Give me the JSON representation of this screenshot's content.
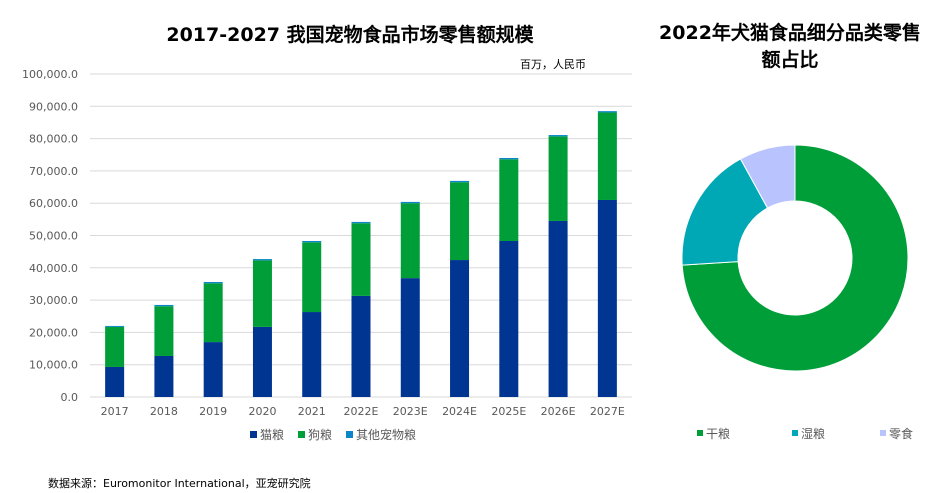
{
  "source": "数据来源：Euromonitor International，亚宠研究院",
  "chart_data": [
    {
      "type": "bar",
      "stacked": true,
      "title": "2017-2027  我国宠物食品市场零售额规模",
      "unit_label": "百万，人民币",
      "categories": [
        "2017",
        "2018",
        "2019",
        "2020",
        "2021",
        "2022E",
        "2023E",
        "2024E",
        "2025E",
        "2026E",
        "2027E"
      ],
      "ylim": [
        0,
        100000
      ],
      "yticks": [
        "0.0",
        "10,000.0",
        "20,000.0",
        "30,000.0",
        "40,000.0",
        "50,000.0",
        "60,000.0",
        "70,000.0",
        "80,000.0",
        "90,000.0",
        "100,000.0"
      ],
      "grid": true,
      "legend": "bottom",
      "series": [
        {
          "name": "猫粮",
          "color": "#003591",
          "values": [
            9300,
            12700,
            17000,
            21700,
            26300,
            31300,
            36800,
            42400,
            48300,
            54500,
            61000
          ]
        },
        {
          "name": "狗粮",
          "color": "#009e38",
          "values": [
            12400,
            15400,
            18200,
            20600,
            21600,
            22500,
            23200,
            24100,
            25300,
            26200,
            27100
          ]
        },
        {
          "name": "其他宠物粮",
          "color": "#0a86c9",
          "values": [
            300,
            400,
            400,
            400,
            400,
            400,
            400,
            400,
            400,
            400,
            400
          ]
        }
      ]
    },
    {
      "type": "pie",
      "donut": true,
      "title": "2022年犬猫食品细分品类零售额占比",
      "legend": "bottom",
      "labels": [
        "干粮",
        "湿粮",
        "零食"
      ],
      "values": [
        74,
        18,
        8
      ],
      "colors": [
        "#009e38",
        "#00a7b5",
        "#b9c4ff"
      ]
    }
  ]
}
